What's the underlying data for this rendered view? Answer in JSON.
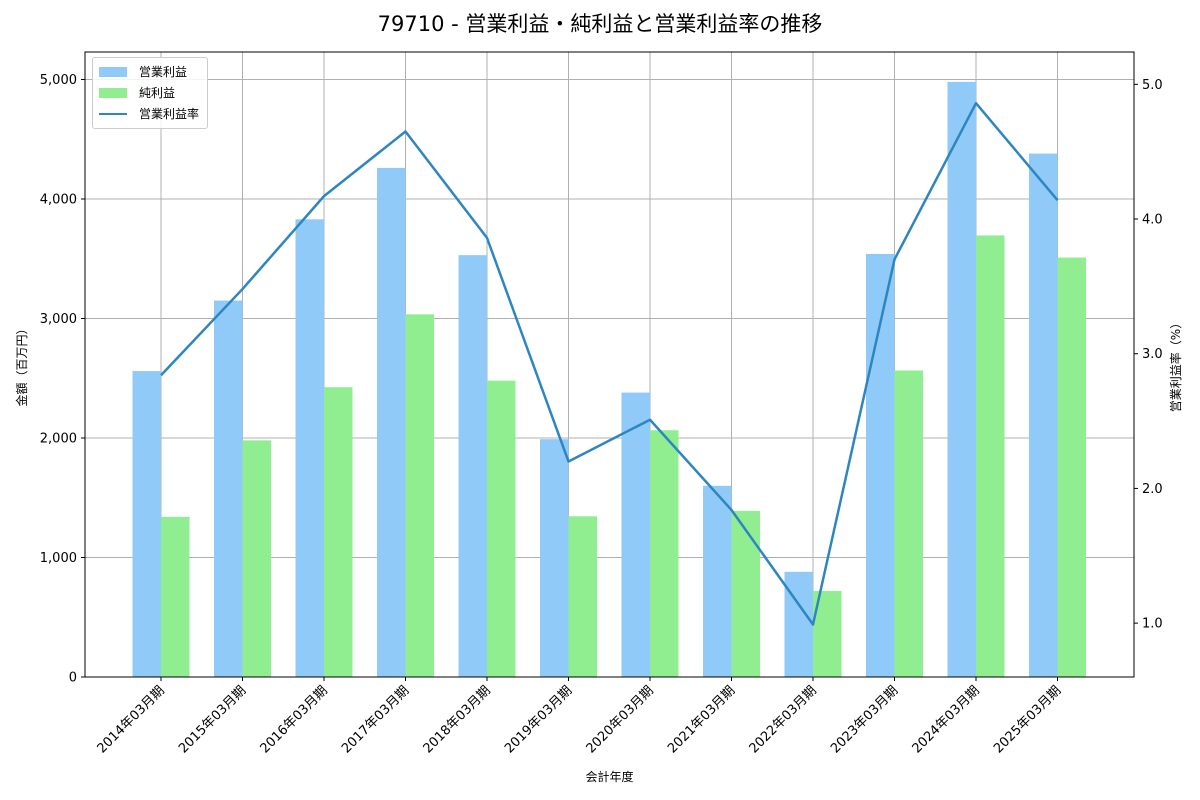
{
  "title": "79710 - 営業利益・純利益と営業利益率の推移",
  "legend": {
    "items": [
      {
        "label": "営業利益",
        "type": "bar",
        "color": "#90caf9"
      },
      {
        "label": "純利益",
        "type": "bar",
        "color": "#90ee90"
      },
      {
        "label": "営業利益率",
        "type": "line",
        "color": "#2e86c1"
      }
    ]
  },
  "axes": {
    "xlabel": "会計年度",
    "ylabel_left": "金額（百万円）",
    "ylabel_right": "営業利益率（%）",
    "left_ticks": [
      "0",
      "1,000",
      "2,000",
      "3,000",
      "4,000",
      "5,000"
    ],
    "right_ticks": [
      "1.0",
      "2.0",
      "3.0",
      "4.0",
      "5.0"
    ]
  },
  "chart_data": {
    "type": "bar",
    "title": "79710 - 営業利益・純利益と営業利益率の推移",
    "xlabel": "会計年度",
    "ylabel": "金額（百万円）",
    "ylabel_right": "営業利益率（%）",
    "categories": [
      "2014年03月期",
      "2015年03月期",
      "2016年03月期",
      "2017年03月期",
      "2018年03月期",
      "2019年03月期",
      "2020年03月期",
      "2021年03月期",
      "2022年03月期",
      "2023年03月期",
      "2024年03月期",
      "2025年03月期"
    ],
    "series": [
      {
        "name": "営業利益",
        "type": "bar",
        "axis": "left",
        "color": "#90caf9",
        "values": [
          2560,
          3150,
          3830,
          4260,
          3530,
          1990,
          2380,
          1600,
          880,
          3540,
          4980,
          4380
        ]
      },
      {
        "name": "純利益",
        "type": "bar",
        "axis": "left",
        "color": "#90ee90",
        "values": [
          1340,
          1980,
          2425,
          3035,
          2480,
          1345,
          2065,
          1390,
          720,
          2565,
          3695,
          3510
        ]
      },
      {
        "name": "営業利益率",
        "type": "line",
        "axis": "right",
        "color": "#2e86c1",
        "values": [
          2.84,
          3.48,
          4.17,
          4.65,
          3.86,
          2.2,
          2.51,
          1.84,
          0.99,
          3.7,
          4.86,
          4.14
        ]
      }
    ],
    "ylim": [
      0,
      5230
    ],
    "ylim_right": [
      0.6,
      5.24
    ],
    "grid": true,
    "legend_position": "upper left"
  }
}
